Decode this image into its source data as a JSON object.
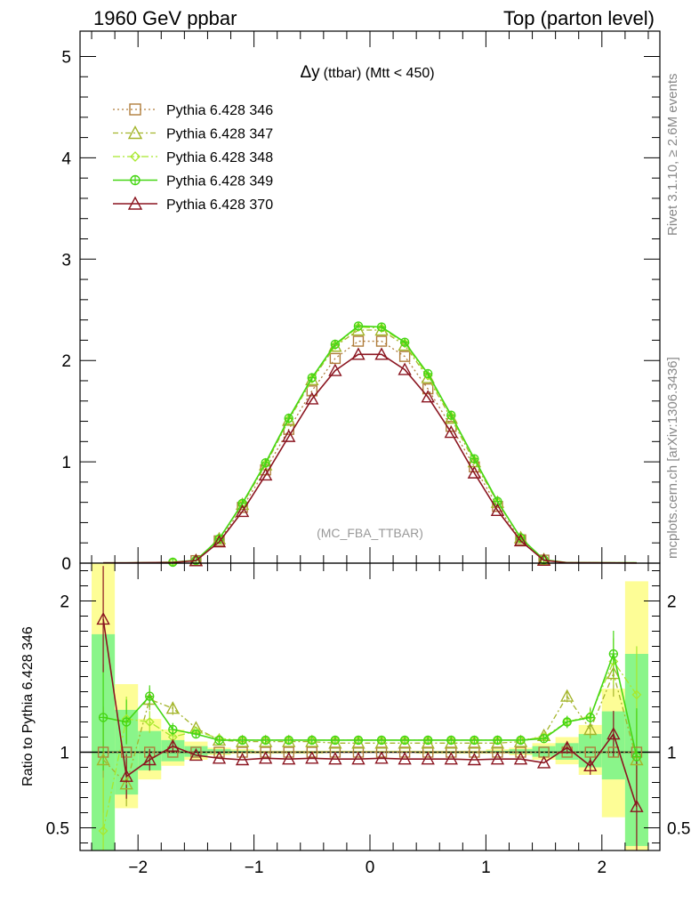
{
  "header": {
    "left_title": "1960 GeV ppbar",
    "right_title": "Top (parton level)"
  },
  "side_labels": {
    "rivet": "Rivet 3.1.10, ≥ 2.6M events",
    "mcplots": "mcplots.cern.ch [arXiv:1306.3436]"
  },
  "colors": {
    "p346": "#b07d3c",
    "p347": "#a4b52c",
    "p348": "#a8e82c",
    "p349": "#45d614",
    "p370": "#8b1520",
    "band_yellow": "#fdfd96",
    "band_green": "#8af58a"
  },
  "chart_data": [
    {
      "type": "line",
      "title_main": "Δy",
      "title_rest": "(ttbar) (Mtt < 450)",
      "watermark": "(MC_FBA_TTBAR)",
      "xlim": [
        -2.5,
        2.5
      ],
      "ylim": [
        0,
        5.25
      ],
      "yticks": [
        0,
        1,
        2,
        3,
        4,
        5
      ],
      "ytick_labels": [
        "0",
        "1",
        "2",
        "3",
        "4",
        "5"
      ],
      "x": [
        -2.3,
        -2.1,
        -1.9,
        -1.7,
        -1.5,
        -1.3,
        -1.1,
        -0.9,
        -0.7,
        -0.5,
        -0.3,
        -0.1,
        0.1,
        0.3,
        0.5,
        0.7,
        0.9,
        1.1,
        1.3,
        1.5,
        1.7,
        1.9,
        2.1,
        2.3
      ],
      "legend_position": "top-left",
      "series": [
        {
          "name": "Pythia 6.428 346",
          "color_key": "p346",
          "marker": "square",
          "dash": "dotted",
          "values": [
            0.003,
            0.003,
            0.005,
            0.007,
            0.025,
            0.22,
            0.55,
            0.92,
            1.32,
            1.7,
            2.02,
            2.19,
            2.19,
            2.04,
            1.72,
            1.35,
            0.95,
            0.56,
            0.23,
            0.03,
            0.004,
            0.004,
            0.003,
            0.003
          ]
        },
        {
          "name": "Pythia 6.428 347",
          "color_key": "p347",
          "marker": "triangle",
          "dash": "dashdot",
          "values": [
            0.003,
            0.003,
            0.005,
            0.008,
            0.028,
            0.24,
            0.58,
            0.97,
            1.41,
            1.81,
            2.14,
            2.3,
            2.3,
            2.15,
            1.83,
            1.43,
            1.0,
            0.6,
            0.25,
            0.035,
            0.005,
            0.005,
            0.004,
            0.004
          ]
        },
        {
          "name": "Pythia 6.428 348",
          "color_key": "p348",
          "marker": "diamond",
          "dash": "dashdot2",
          "values": [
            0.003,
            0.003,
            0.005,
            0.009,
            0.028,
            0.24,
            0.59,
            0.98,
            1.42,
            1.82,
            2.15,
            2.33,
            2.32,
            2.17,
            1.85,
            1.45,
            1.02,
            0.6,
            0.25,
            0.034,
            0.005,
            0.005,
            0.004,
            0.004
          ]
        },
        {
          "name": "Pythia 6.428 349",
          "color_key": "p349",
          "marker": "circleplus",
          "dash": "solid",
          "values": [
            0.003,
            0.003,
            0.005,
            0.009,
            0.028,
            0.24,
            0.59,
            0.99,
            1.43,
            1.83,
            2.16,
            2.34,
            2.33,
            2.18,
            1.87,
            1.46,
            1.03,
            0.61,
            0.25,
            0.034,
            0.005,
            0.005,
            0.004,
            0.004
          ]
        },
        {
          "name": "Pythia 6.428 370",
          "color_key": "p370",
          "marker": "triangle",
          "dash": "solid",
          "values": [
            0.003,
            0.003,
            0.005,
            0.007,
            0.024,
            0.21,
            0.51,
            0.87,
            1.25,
            1.62,
            1.9,
            2.06,
            2.06,
            1.91,
            1.64,
            1.29,
            0.89,
            0.52,
            0.22,
            0.028,
            0.004,
            0.004,
            0.003,
            0.002
          ]
        }
      ]
    },
    {
      "type": "line",
      "ylabel": "Ratio to Pythia 6.428 346",
      "xlim": [
        -2.5,
        2.5
      ],
      "ylim": [
        0.35,
        2.25
      ],
      "yticks": [
        0.5,
        1,
        2
      ],
      "ytick_labels": [
        "0.5",
        "1",
        "2"
      ],
      "xticks": [
        -2,
        -1,
        0,
        1,
        2
      ],
      "xtick_labels": [
        "−2",
        "−1",
        "0",
        "1",
        "2"
      ],
      "x": [
        -2.3,
        -2.1,
        -1.9,
        -1.7,
        -1.5,
        -1.3,
        -1.1,
        -0.9,
        -0.7,
        -0.5,
        -0.3,
        -0.1,
        0.1,
        0.3,
        0.5,
        0.7,
        0.9,
        1.1,
        1.3,
        1.5,
        1.7,
        1.9,
        2.1,
        2.3
      ],
      "band_yellow": [
        [
          0.3,
          2.25
        ],
        [
          0.63,
          1.45
        ],
        [
          0.82,
          1.22
        ],
        [
          0.91,
          1.15
        ],
        [
          0.95,
          1.07
        ],
        [
          0.98,
          1.03
        ],
        [
          0.99,
          1.02
        ],
        [
          0.99,
          1.01
        ],
        [
          0.99,
          1.01
        ],
        [
          0.99,
          1.01
        ],
        [
          0.995,
          1.01
        ],
        [
          0.995,
          1.01
        ],
        [
          0.995,
          1.01
        ],
        [
          0.995,
          1.01
        ],
        [
          0.99,
          1.01
        ],
        [
          0.99,
          1.01
        ],
        [
          0.99,
          1.01
        ],
        [
          0.99,
          1.02
        ],
        [
          0.98,
          1.03
        ],
        [
          0.95,
          1.06
        ],
        [
          0.92,
          1.1
        ],
        [
          0.85,
          1.18
        ],
        [
          0.57,
          1.42
        ],
        [
          0.35,
          2.13
        ]
      ],
      "band_green": [
        [
          0.3,
          1.78
        ],
        [
          0.72,
          1.28
        ],
        [
          0.88,
          1.14
        ],
        [
          0.94,
          1.08
        ],
        [
          0.97,
          1.04
        ],
        [
          0.99,
          1.02
        ],
        [
          0.995,
          1.01
        ],
        [
          0.995,
          1.005
        ],
        [
          0.995,
          1.005
        ],
        [
          0.995,
          1.005
        ],
        [
          0.997,
          1.005
        ],
        [
          0.997,
          1.005
        ],
        [
          0.997,
          1.005
        ],
        [
          0.997,
          1.005
        ],
        [
          0.995,
          1.005
        ],
        [
          0.995,
          1.005
        ],
        [
          0.995,
          1.005
        ],
        [
          0.995,
          1.01
        ],
        [
          0.99,
          1.02
        ],
        [
          0.97,
          1.04
        ],
        [
          0.95,
          1.06
        ],
        [
          0.9,
          1.12
        ],
        [
          0.82,
          1.27
        ],
        [
          0.38,
          1.65
        ]
      ],
      "series": [
        {
          "name": "Pythia 6.428 346",
          "color_key": "p346",
          "marker": "square",
          "dash": "dotted",
          "values": [
            1,
            1,
            1,
            1,
            1,
            1,
            1,
            1,
            1,
            1,
            1,
            1,
            1,
            1,
            1,
            1,
            1,
            1,
            1,
            1,
            1,
            1,
            1,
            1
          ]
        },
        {
          "name": "Pythia 6.428 347",
          "color_key": "p347",
          "marker": "triangle",
          "dash": "dashdot",
          "values": [
            0.95,
            0.79,
            1.35,
            1.29,
            1.16,
            1.08,
            1.07,
            1.07,
            1.07,
            1.07,
            1.06,
            1.06,
            1.06,
            1.06,
            1.06,
            1.06,
            1.06,
            1.06,
            1.07,
            1.11,
            1.37,
            1.15,
            1.52,
            0.95
          ]
        },
        {
          "name": "Pythia 6.428 348",
          "color_key": "p348",
          "marker": "diamond",
          "dash": "dashdot2",
          "values": [
            0.48,
            1.22,
            1.2,
            1.1,
            1.14,
            1.09,
            1.08,
            1.08,
            1.08,
            1.08,
            1.08,
            1.08,
            1.08,
            1.08,
            1.08,
            1.08,
            1.08,
            1.08,
            1.08,
            1.1,
            1.2,
            1.24,
            1.6,
            1.38
          ]
        },
        {
          "name": "Pythia 6.428 349",
          "color_key": "p349",
          "marker": "circleplus",
          "dash": "solid",
          "values": [
            1.23,
            1.2,
            1.37,
            1.15,
            1.12,
            1.08,
            1.08,
            1.08,
            1.08,
            1.08,
            1.08,
            1.08,
            1.08,
            1.08,
            1.08,
            1.08,
            1.08,
            1.08,
            1.08,
            1.09,
            1.2,
            1.23,
            1.65,
            0.97
          ]
        },
        {
          "name": "Pythia 6.428 370",
          "color_key": "p370",
          "marker": "triangle",
          "dash": "solid",
          "values": [
            1.88,
            0.84,
            0.95,
            1.04,
            0.98,
            0.96,
            0.95,
            0.96,
            0.955,
            0.96,
            0.955,
            0.955,
            0.96,
            0.955,
            0.955,
            0.955,
            0.95,
            0.955,
            0.955,
            0.93,
            1.03,
            0.91,
            1.12,
            0.64
          ]
        }
      ]
    }
  ]
}
